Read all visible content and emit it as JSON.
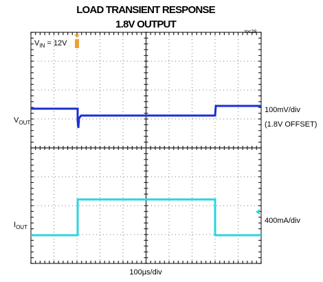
{
  "header": {
    "title": "LOAD TRANSIENT RESPONSE",
    "subtitle": "1.8V OUTPUT",
    "tag": "toc28"
  },
  "condition": {
    "symbol": "V",
    "subscript": "IN",
    "rest": " = 12V"
  },
  "channels": [
    {
      "symbol": "V",
      "subscript": "OUT",
      "scale": "100mV/div",
      "note": "(1.8V OFFSET)"
    },
    {
      "symbol": "I",
      "subscript": "OUT",
      "scale": "400mA/div"
    }
  ],
  "timebase": "100µs/div"
}
